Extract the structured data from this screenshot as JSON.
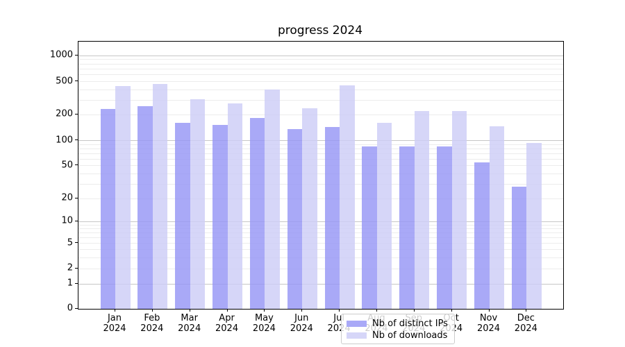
{
  "chart_data": {
    "type": "bar",
    "title": "progress 2024",
    "categories": [
      "Jan 2024",
      "Feb 2024",
      "Mar 2024",
      "Apr 2024",
      "May 2024",
      "Jun 2024",
      "Jul 2024",
      "Aug 2024",
      "Sep 2024",
      "Oct 2024",
      "Nov 2024",
      "Dec 2024"
    ],
    "series": [
      {
        "name": "Nb of distinct IPs",
        "color": "#a9a9f7",
        "values": [
          235,
          255,
          160,
          152,
          185,
          137,
          145,
          85,
          86,
          86,
          55,
          28
        ]
      },
      {
        "name": "Nb of downloads",
        "color": "#d6d6f8",
        "values": [
          440,
          470,
          310,
          275,
          405,
          240,
          455,
          160,
          220,
          220,
          148,
          93
        ]
      }
    ],
    "xlabel": "",
    "ylabel": "",
    "yscale": "symlog",
    "yticks": [
      0,
      1,
      2,
      5,
      10,
      20,
      50,
      100,
      200,
      500,
      1000
    ],
    "ylim": [
      0,
      1150
    ],
    "grid": "horizontal; dark lines at decades, faint log minor lines",
    "legend_position": "lower center inside plot"
  }
}
